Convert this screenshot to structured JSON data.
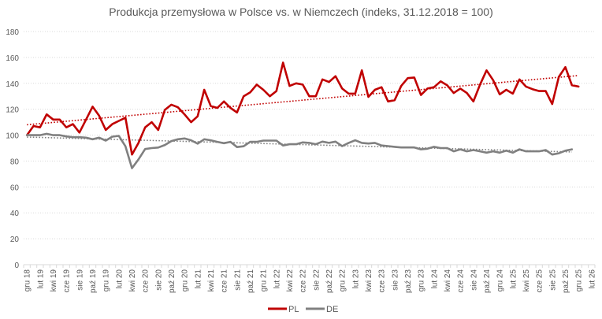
{
  "chart_data": {
    "type": "line",
    "title": "Produkcja przemysłowa w Polsce vs. w Niemczech (indeks, 31.12.2018 = 100)",
    "xlabel": "",
    "ylabel": "",
    "ylim": [
      0,
      180
    ],
    "yticks": [
      0,
      20,
      40,
      60,
      80,
      100,
      120,
      140,
      160,
      180
    ],
    "grid": true,
    "legend_position": "bottom",
    "category_count": 87,
    "x_tick_labels": [
      "gru 18",
      "lut 19",
      "kwi 19",
      "cze 19",
      "sie 19",
      "paź 19",
      "gru 19",
      "lut 20",
      "kwi 20",
      "cze 20",
      "sie 20",
      "paź 20",
      "gru 20",
      "lut 21",
      "kwi 21",
      "cze 21",
      "sie 21",
      "paź 21",
      "gru 21",
      "lut 22",
      "kwi 22",
      "cze 22",
      "sie 22",
      "paź 22",
      "gru 22",
      "lut 23",
      "kwi 23",
      "cze 23",
      "sie 23",
      "paź 23",
      "gru 23",
      "lut 24",
      "kwi 24",
      "cze 24",
      "sie 24",
      "paź 24",
      "gru 24",
      "lut 25",
      "kwi 25",
      "cze 25",
      "sie 25",
      "paź 25",
      "gru 25",
      "lut 26"
    ],
    "series": [
      {
        "name": "PL",
        "color": "#c00000",
        "values": [
          100,
          107,
          106,
          116,
          112,
          112,
          106,
          108.5,
          102,
          112,
          122,
          115,
          104,
          108.5,
          111,
          113.5,
          85,
          94,
          106,
          110,
          104,
          119.5,
          123.5,
          121.5,
          116,
          110,
          114.5,
          135,
          122.5,
          121,
          126,
          121,
          117.5,
          130,
          133,
          139,
          135,
          130,
          134,
          156,
          138,
          140,
          139,
          130,
          130,
          143,
          141,
          145.5,
          136,
          132,
          132,
          150,
          129.5,
          135,
          137,
          126,
          127,
          138,
          144,
          144.5,
          131,
          136,
          137,
          141.5,
          138.5,
          132.5,
          136,
          132.5,
          126,
          139,
          150,
          142.5,
          131.5,
          135,
          132,
          143,
          137.5,
          135.5,
          134,
          134,
          124,
          145,
          152.5,
          138.5,
          137.5
        ],
        "trend": {
          "style": "dotted",
          "start": 108,
          "end": 146
        }
      },
      {
        "name": "DE",
        "color": "#808080",
        "values": [
          100,
          100,
          100,
          101,
          100,
          100,
          99,
          98.4,
          98.4,
          98,
          96.8,
          98,
          95.8,
          98.8,
          99.4,
          91.4,
          74.5,
          81.3,
          89.3,
          90,
          90.4,
          92.4,
          95.4,
          96.8,
          97.4,
          96,
          93.4,
          96.8,
          96,
          94.8,
          93.8,
          94.8,
          90.8,
          91.4,
          94.8,
          94.8,
          95.8,
          95.8,
          95.8,
          92,
          93,
          93,
          94.4,
          94,
          93,
          95,
          94,
          95,
          91.5,
          94,
          96,
          94,
          93.5,
          94,
          92,
          91.5,
          91,
          90.5,
          90.5,
          90.5,
          89,
          89.5,
          91,
          90,
          90,
          87.5,
          89,
          87.5,
          88.5,
          87.5,
          86.5,
          87.5,
          86.5,
          88,
          86.5,
          89,
          87.5,
          87.5,
          87.5,
          88.5,
          85,
          86,
          88,
          89
        ],
        "trend": {
          "style": "dotted",
          "start": 98.5,
          "end": 87
        }
      }
    ]
  }
}
